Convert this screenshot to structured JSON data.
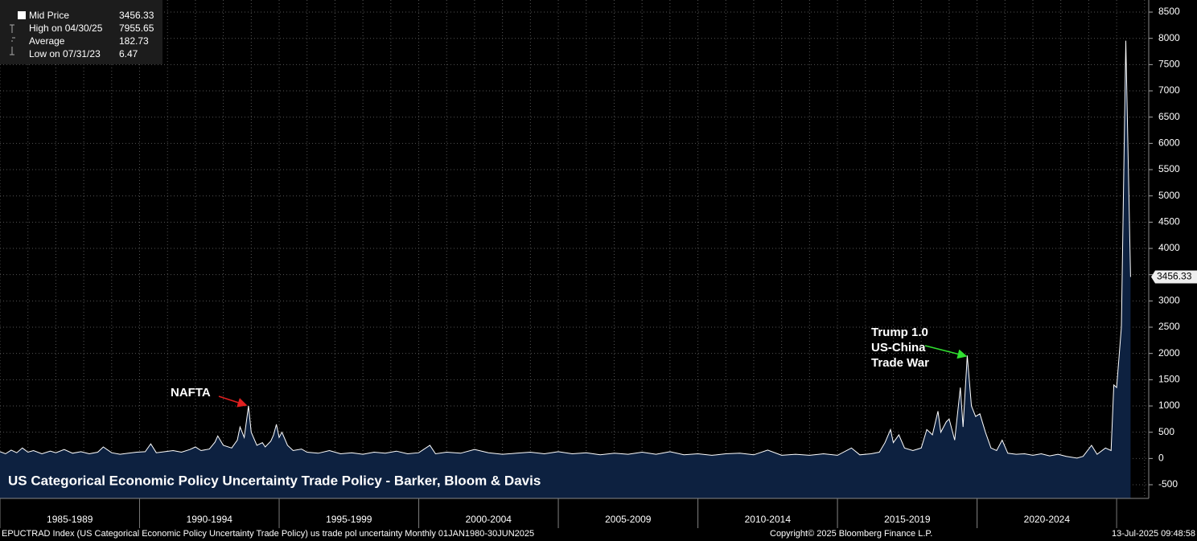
{
  "chart_data": {
    "type": "area",
    "title": "US Categorical Economic Policy Uncertainty Trade Policy - Barker, Bloom & Davis",
    "legend": [
      {
        "label": "Mid Price",
        "value": 3456.33
      },
      {
        "label": "High on 04/30/25",
        "value": 7955.65
      },
      {
        "label": "Average",
        "value": 182.73
      },
      {
        "label": "Low on 07/31/23",
        "value": 6.47
      }
    ],
    "annotations": [
      "NAFTA",
      "Trump 1.0",
      "US-China",
      "Trade War"
    ],
    "x_bands": [
      {
        "start": 1985,
        "end": 1990,
        "label": "1985-1989"
      },
      {
        "start": 1990,
        "end": 1995,
        "label": "1990-1994"
      },
      {
        "start": 1995,
        "end": 2000,
        "label": "1995-1999"
      },
      {
        "start": 2000,
        "end": 2005,
        "label": "2000-2004"
      },
      {
        "start": 2005,
        "end": 2010,
        "label": "2005-2009"
      },
      {
        "start": 2010,
        "end": 2015,
        "label": "2010-2014"
      },
      {
        "start": 2015,
        "end": 2020,
        "label": "2015-2019"
      },
      {
        "start": 2020,
        "end": 2025,
        "label": "2020-2024"
      }
    ],
    "xlim": [
      1985,
      2026.15
    ],
    "ylim": [
      -760,
      8730
    ],
    "yticks": [
      -500,
      0,
      500,
      1000,
      1500,
      2000,
      2500,
      3000,
      3500,
      4000,
      4500,
      5000,
      5500,
      6000,
      6500,
      7000,
      7500,
      8000,
      8500
    ],
    "grid": true,
    "series": [
      {
        "name": "Mid Price",
        "color": "#ffffff",
        "fill": "#0d2140",
        "x": [
          1985.0,
          1985.2,
          1985.4,
          1985.6,
          1985.8,
          1986.0,
          1986.2,
          1986.5,
          1986.8,
          1987.0,
          1987.3,
          1987.6,
          1987.9,
          1988.2,
          1988.5,
          1988.7,
          1989.0,
          1989.3,
          1989.6,
          1989.9,
          1990.2,
          1990.4,
          1990.6,
          1990.9,
          1991.2,
          1991.5,
          1991.8,
          1992.0,
          1992.2,
          1992.5,
          1992.7,
          1992.8,
          1993.0,
          1993.3,
          1993.5,
          1993.6,
          1993.75,
          1993.9,
          1994.0,
          1994.2,
          1994.4,
          1994.5,
          1994.7,
          1994.8,
          1994.9,
          1995.0,
          1995.1,
          1995.3,
          1995.5,
          1995.8,
          1996.0,
          1996.4,
          1996.8,
          1997.2,
          1997.6,
          1998.0,
          1998.4,
          1998.8,
          1999.2,
          1999.6,
          2000.0,
          2000.4,
          2000.6,
          2001.0,
          2001.5,
          2002.0,
          2002.5,
          2003.0,
          2003.5,
          2004.0,
          2004.5,
          2005.0,
          2005.5,
          2006.0,
          2006.5,
          2007.0,
          2007.5,
          2008.0,
          2008.5,
          2009.0,
          2009.5,
          2010.0,
          2010.5,
          2011.0,
          2011.5,
          2012.0,
          2012.5,
          2013.0,
          2013.5,
          2014.0,
          2014.5,
          2015.0,
          2015.5,
          2015.8,
          2016.2,
          2016.5,
          2016.7,
          2016.9,
          2017.0,
          2017.2,
          2017.4,
          2017.7,
          2018.0,
          2018.2,
          2018.4,
          2018.6,
          2018.7,
          2018.9,
          2019.0,
          2019.2,
          2019.4,
          2019.5,
          2019.65,
          2019.8,
          2019.95,
          2020.1,
          2020.3,
          2020.5,
          2020.7,
          2020.9,
          2021.1,
          2021.4,
          2021.7,
          2022.0,
          2022.3,
          2022.6,
          2022.9,
          2023.2,
          2023.58,
          2023.8,
          2024.1,
          2024.3,
          2024.6,
          2024.8,
          2024.9,
          2025.0,
          2025.17,
          2025.33,
          2025.42,
          2025.5
        ],
        "values": [
          130,
          90,
          160,
          110,
          200,
          120,
          150,
          90,
          140,
          110,
          170,
          100,
          130,
          90,
          120,
          220,
          110,
          80,
          100,
          120,
          130,
          280,
          110,
          130,
          150,
          120,
          170,
          220,
          150,
          180,
          310,
          430,
          250,
          200,
          350,
          600,
          400,
          1000,
          500,
          250,
          300,
          220,
          330,
          450,
          650,
          400,
          500,
          250,
          150,
          180,
          120,
          100,
          150,
          90,
          110,
          80,
          120,
          100,
          140,
          90,
          110,
          250,
          90,
          120,
          100,
          170,
          110,
          80,
          100,
          120,
          90,
          130,
          90,
          110,
          70,
          100,
          80,
          120,
          80,
          130,
          70,
          90,
          60,
          90,
          100,
          70,
          160,
          60,
          80,
          60,
          90,
          60,
          200,
          70,
          90,
          120,
          300,
          550,
          300,
          450,
          200,
          150,
          200,
          550,
          450,
          900,
          500,
          700,
          750,
          350,
          1350,
          600,
          1960,
          1000,
          800,
          850,
          500,
          200,
          150,
          350,
          100,
          80,
          90,
          60,
          90,
          50,
          80,
          40,
          6.47,
          40,
          250,
          80,
          200,
          150,
          1400,
          1350,
          2500,
          7955.65,
          5500,
          3456.33
        ]
      }
    ],
    "source": "EPUCTRAD Index (US Categorical Economic Policy Uncertainty Trade Policy) us trade pol uncertainty  Monthly 01JAN1980-30JUN2025",
    "copyright": "Copyright© 2025 Bloomberg Finance L.P.",
    "timestamp": "13-Jul-2025 09:48:58"
  }
}
